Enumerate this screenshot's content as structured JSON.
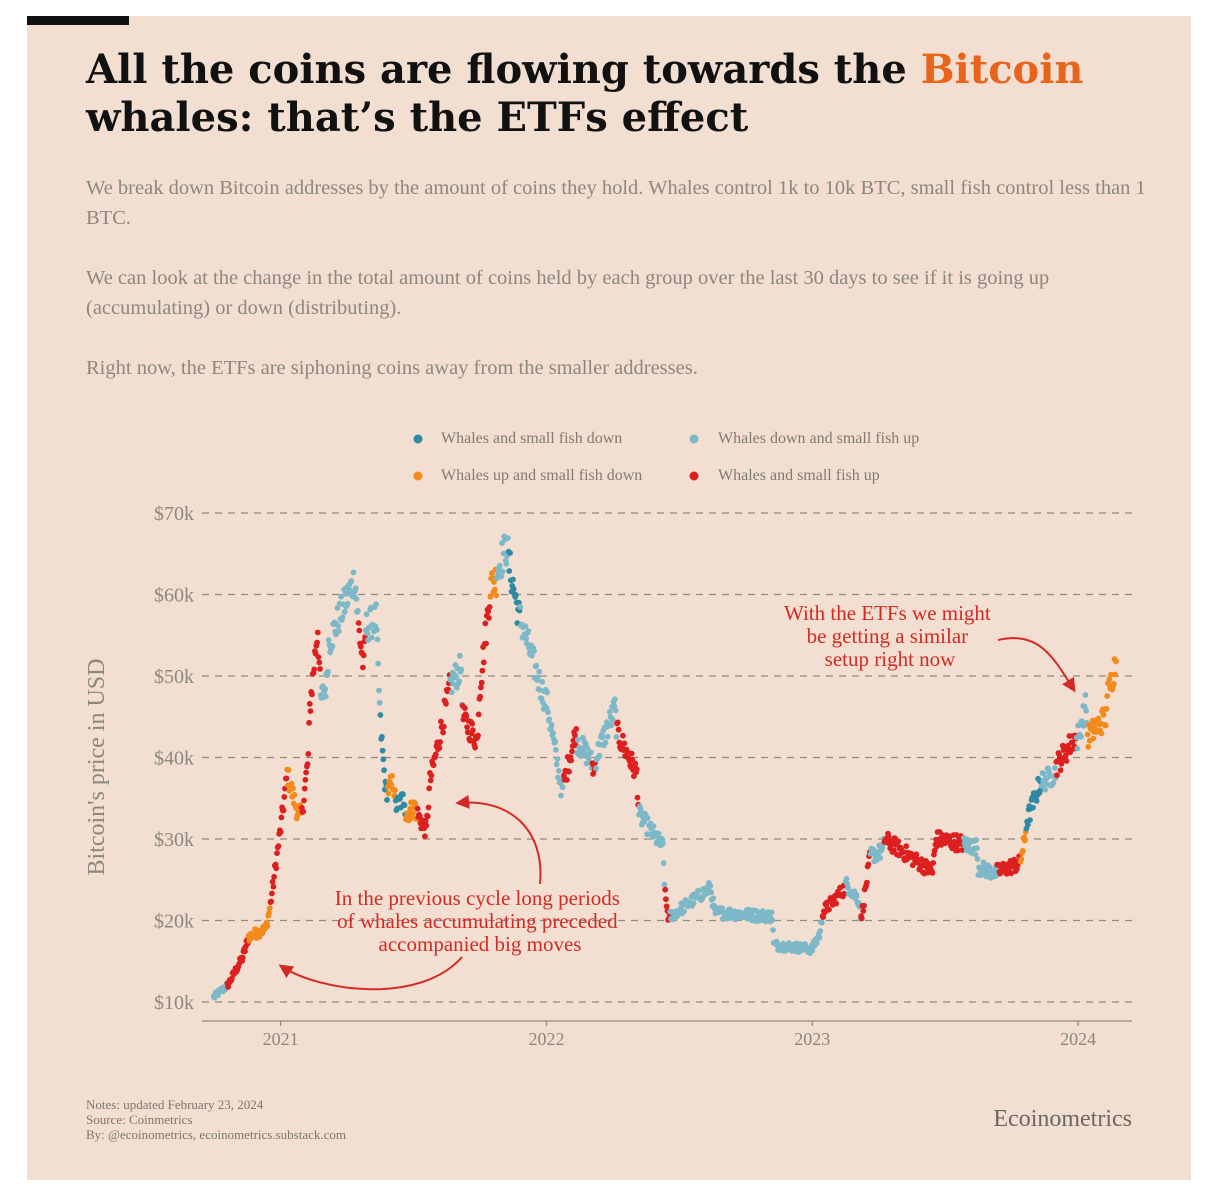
{
  "title": {
    "part1": "All the coins are flowing towards the ",
    "highlight": "Bitcoin",
    "part2": " whales: that’s the ETFs effect"
  },
  "subtitle": {
    "p1": "We break down Bitcoin addresses by the amount of coins they hold. Whales control 1k to 10k BTC, small fish control less than 1 BTC.",
    "p2": "We can look at the change in the total amount of coins held by each group over the last 30 days to see if it is going up (accumulating) or down (distributing).",
    "p3": "Right now, the ETFs are siphoning coins away from the smaller addresses."
  },
  "footer": {
    "notes": "Notes: updated February 23, 2024",
    "source": "Source: Coinmetrics",
    "by": "By: @ecoinometrics, ecoinometrics.substack.com",
    "brand": "Ecoinometrics"
  },
  "colors": {
    "background": "#f2dfd1",
    "highlight": "#e8641a",
    "annotation": "#d42a24"
  },
  "chart_data": {
    "type": "scatter",
    "ylabel": "Bitcoin's price in USD",
    "xlabel": "",
    "ylim": [
      10000,
      70000
    ],
    "xlim": [
      "2020-09-15",
      "2024-03-15"
    ],
    "y_ticks": [
      {
        "value": 10000,
        "label": "$10k"
      },
      {
        "value": 20000,
        "label": "$20k"
      },
      {
        "value": 30000,
        "label": "$30k"
      },
      {
        "value": 40000,
        "label": "$40k"
      },
      {
        "value": 50000,
        "label": "$50k"
      },
      {
        "value": 60000,
        "label": "$60k"
      },
      {
        "value": 70000,
        "label": "$70k"
      }
    ],
    "x_ticks": [
      {
        "date": "2021-01-01",
        "label": "2021"
      },
      {
        "date": "2022-01-01",
        "label": "2022"
      },
      {
        "date": "2023-01-01",
        "label": "2023"
      },
      {
        "date": "2024-01-01",
        "label": "2024"
      }
    ],
    "grid": "horizontal dashed",
    "legend_placement": "top-center",
    "series": [
      {
        "name": "Whales and small fish down",
        "color": "#2f8aa3"
      },
      {
        "name": "Whales down and small fish up",
        "color": "#7db8c9"
      },
      {
        "name": "Whales up and small fish down",
        "color": "#f28a1c"
      },
      {
        "name": "Whales and small fish up",
        "color": "#dc1f1f"
      }
    ],
    "segments": [
      [
        "2020-10-01",
        10600,
        1
      ],
      [
        "2020-10-10",
        11300,
        1
      ],
      [
        "2020-10-20",
        12000,
        3
      ],
      [
        "2020-11-10",
        15500,
        3
      ],
      [
        "2020-11-18",
        18000,
        2
      ],
      [
        "2020-12-12",
        19000,
        2
      ],
      [
        "2020-12-18",
        22000,
        3
      ],
      [
        "2021-01-02",
        32000,
        3
      ],
      [
        "2021-01-10",
        38000,
        2
      ],
      [
        "2021-01-25",
        33000,
        2
      ],
      [
        "2021-01-30",
        33000,
        3
      ],
      [
        "2021-02-08",
        40000,
        3
      ],
      [
        "2021-02-10",
        46000,
        3
      ],
      [
        "2021-02-21",
        56000,
        3
      ],
      [
        "2021-02-25",
        47000,
        1
      ],
      [
        "2021-03-05",
        49000,
        1
      ],
      [
        "2021-03-08",
        54000,
        1
      ],
      [
        "2021-04-13",
        62000,
        1
      ],
      [
        "2021-04-18",
        56000,
        3
      ],
      [
        "2021-04-25",
        51000,
        3
      ],
      [
        "2021-04-28",
        56000,
        1
      ],
      [
        "2021-05-12",
        57000,
        1
      ],
      [
        "2021-05-18",
        44000,
        0
      ],
      [
        "2021-05-25",
        36000,
        0
      ],
      [
        "2021-05-28",
        36000,
        2
      ],
      [
        "2021-06-05",
        37000,
        2
      ],
      [
        "2021-06-08",
        34000,
        0
      ],
      [
        "2021-06-20",
        35000,
        0
      ],
      [
        "2021-06-22",
        33000,
        2
      ],
      [
        "2021-07-05",
        34000,
        2
      ],
      [
        "2021-07-08",
        33000,
        3
      ],
      [
        "2021-07-20",
        31000,
        3
      ],
      [
        "2021-07-25",
        37000,
        3
      ],
      [
        "2021-08-20",
        48000,
        3
      ],
      [
        "2021-08-22",
        49000,
        1
      ],
      [
        "2021-09-06",
        51000,
        1
      ],
      [
        "2021-09-08",
        45000,
        3
      ],
      [
        "2021-09-28",
        42000,
        3
      ],
      [
        "2021-10-01",
        48000,
        3
      ],
      [
        "2021-10-15",
        60000,
        3
      ],
      [
        "2021-10-16",
        61000,
        2
      ],
      [
        "2021-10-24",
        62000,
        2
      ],
      [
        "2021-10-25",
        63000,
        1
      ],
      [
        "2021-11-08",
        66000,
        1
      ],
      [
        "2021-11-10",
        64000,
        0
      ],
      [
        "2021-11-25",
        57000,
        0
      ],
      [
        "2021-11-26",
        57000,
        1
      ],
      [
        "2021-12-30",
        47000,
        1
      ],
      [
        "2022-01-01",
        47000,
        1
      ],
      [
        "2022-01-22",
        36000,
        1
      ],
      [
        "2022-01-25",
        37000,
        3
      ],
      [
        "2022-02-10",
        43000,
        3
      ],
      [
        "2022-02-12",
        42000,
        1
      ],
      [
        "2022-03-01",
        40000,
        1
      ],
      [
        "2022-03-05",
        39000,
        3
      ],
      [
        "2022-03-08",
        38500,
        3
      ],
      [
        "2022-03-10",
        40000,
        1
      ],
      [
        "2022-04-05",
        46000,
        1
      ],
      [
        "2022-04-08",
        43000,
        3
      ],
      [
        "2022-05-05",
        38000,
        3
      ],
      [
        "2022-05-08",
        33000,
        1
      ],
      [
        "2022-06-10",
        29000,
        1
      ],
      [
        "2022-06-13",
        23000,
        3
      ],
      [
        "2022-06-18",
        20000,
        3
      ],
      [
        "2022-06-20",
        20500,
        1
      ],
      [
        "2022-08-14",
        24000,
        1
      ],
      [
        "2022-08-20",
        21000,
        1
      ],
      [
        "2022-11-07",
        20500,
        1
      ],
      [
        "2022-11-09",
        17000,
        1
      ],
      [
        "2022-12-31",
        16500,
        1
      ],
      [
        "2023-01-02",
        16700,
        1
      ],
      [
        "2023-01-12",
        18500,
        1
      ],
      [
        "2023-01-15",
        21000,
        3
      ],
      [
        "2023-02-15",
        24000,
        3
      ],
      [
        "2023-02-16",
        24500,
        1
      ],
      [
        "2023-03-06",
        22500,
        1
      ],
      [
        "2023-03-09",
        20000,
        3
      ],
      [
        "2023-03-20",
        27000,
        3
      ],
      [
        "2023-03-22",
        28000,
        1
      ],
      [
        "2023-04-08",
        28500,
        1
      ],
      [
        "2023-04-10",
        30000,
        3
      ],
      [
        "2023-06-15",
        26000,
        3
      ],
      [
        "2023-06-20",
        30000,
        3
      ],
      [
        "2023-07-25",
        29500,
        3
      ],
      [
        "2023-07-28",
        29300,
        1
      ],
      [
        "2023-08-15",
        29000,
        1
      ],
      [
        "2023-08-17",
        26500,
        1
      ],
      [
        "2023-09-10",
        25800,
        1
      ],
      [
        "2023-09-12",
        26000,
        3
      ],
      [
        "2023-10-12",
        27000,
        3
      ],
      [
        "2023-10-14",
        27500,
        2
      ],
      [
        "2023-10-20",
        30000,
        2
      ],
      [
        "2023-10-22",
        32000,
        0
      ],
      [
        "2023-11-10",
        37000,
        0
      ],
      [
        "2023-11-12",
        37000,
        1
      ],
      [
        "2023-11-30",
        38000,
        1
      ],
      [
        "2023-12-02",
        39000,
        3
      ],
      [
        "2023-12-28",
        42500,
        3
      ],
      [
        "2023-12-30",
        42000,
        1
      ],
      [
        "2024-01-12",
        46500,
        1
      ],
      [
        "2024-01-14",
        42500,
        2
      ],
      [
        "2024-02-08",
        45000,
        2
      ],
      [
        "2024-02-09",
        47000,
        2
      ],
      [
        "2024-02-22",
        51800,
        2
      ]
    ],
    "annotations": [
      {
        "lines": [
          "In the previous cycle long periods",
          "of whales accumulating preceded",
          "accompanied big moves"
        ]
      },
      {
        "lines": [
          "With the ETFs we might",
          "be getting a similar",
          "setup right now"
        ]
      }
    ]
  }
}
